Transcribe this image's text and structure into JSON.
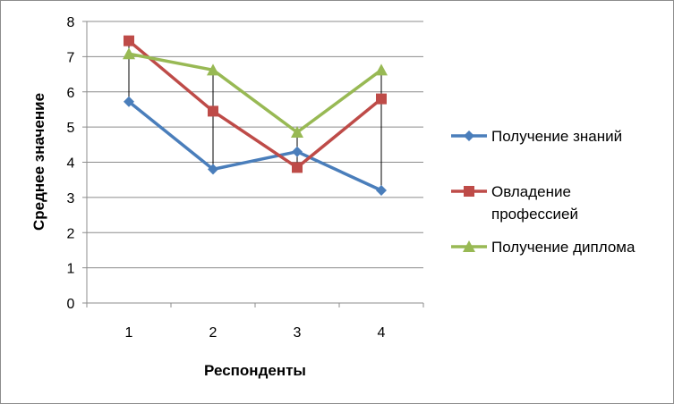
{
  "chart_data": {
    "type": "line",
    "title": "",
    "xlabel": "Респонденты",
    "ylabel": "Среднее значение",
    "categories": [
      "1",
      "2",
      "3",
      "4"
    ],
    "ylim": [
      0,
      8
    ],
    "yticks": [
      "0",
      "1",
      "2",
      "3",
      "4",
      "5",
      "6",
      "7",
      "8"
    ],
    "grid": true,
    "legend_placement": "right",
    "high_low_lines": true,
    "series": [
      {
        "name": "Получение знаний",
        "values": [
          5.72,
          3.8,
          4.3,
          3.2
        ],
        "color": "#4a7ebb",
        "marker": "diamond"
      },
      {
        "name": "Овладение профессией",
        "values": [
          7.45,
          5.45,
          3.85,
          5.8
        ],
        "color": "#be4b48",
        "marker": "square"
      },
      {
        "name": "Получение диплома",
        "values": [
          7.08,
          6.62,
          4.85,
          6.62
        ],
        "color": "#98b954",
        "marker": "triangle"
      }
    ]
  }
}
